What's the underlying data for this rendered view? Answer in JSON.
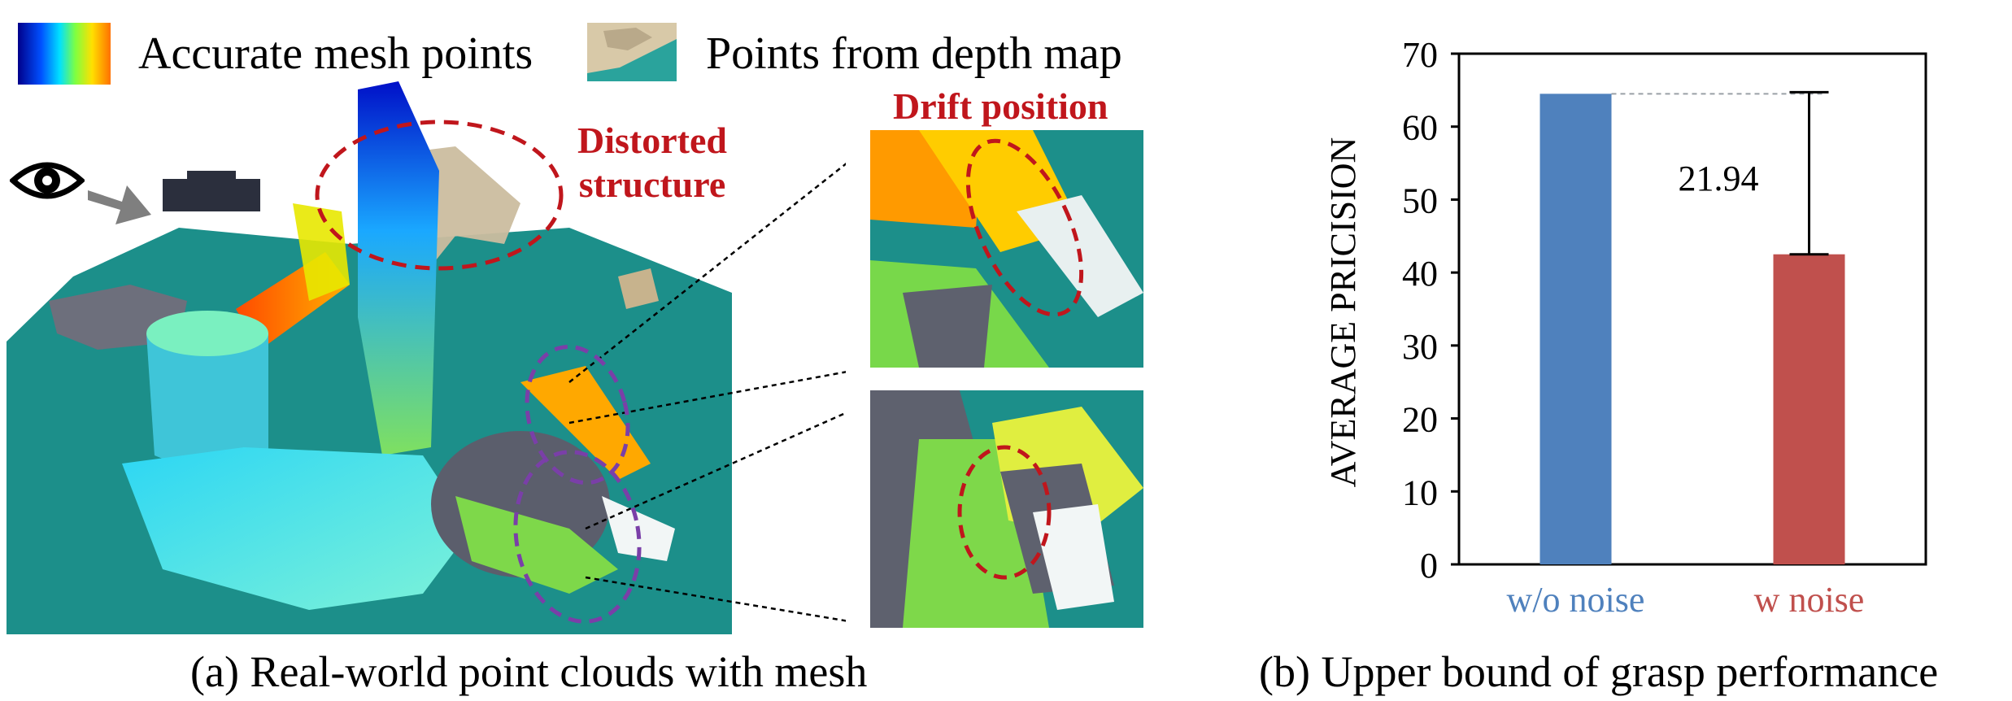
{
  "legend": {
    "mesh_label": "Accurate mesh points",
    "depth_label": "Points from depth map"
  },
  "annotations": {
    "distorted": "Distorted\nstructure",
    "drift": "Drift position"
  },
  "captions": {
    "left": "(a) Real-world point clouds with mesh",
    "right": "(b) Upper bound of grasp performance"
  },
  "colors": {
    "bar_wo_noise": "#4f81bd",
    "bar_w_noise": "#c0504d",
    "annotation_red": "#c0161c",
    "annotation_purple": "#7a3fa8",
    "floor_teal": "#1c8f8a"
  },
  "chart_data": {
    "type": "bar",
    "categories": [
      "w/o noise",
      "w noise"
    ],
    "values": [
      64.5,
      42.5
    ],
    "ylabel": "AVERAGE PRICISION",
    "ylim": [
      0,
      70
    ],
    "yticks": [
      "0",
      "10",
      "20",
      "30",
      "40",
      "50",
      "60",
      "70"
    ],
    "annotation": "21.94",
    "grid": false
  }
}
